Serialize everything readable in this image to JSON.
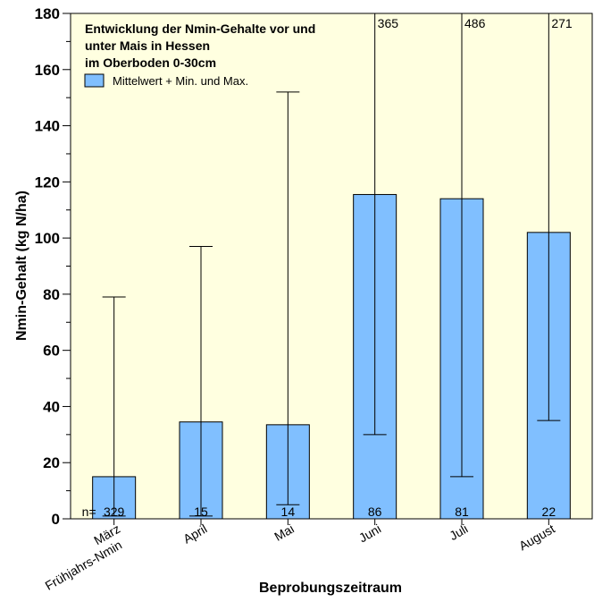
{
  "chart_data": {
    "type": "bar",
    "title_lines": [
      "Entwicklung der Nmin-Gehalte vor und",
      "unter Mais in Hessen",
      "im Oberboden 0-30cm"
    ],
    "legend": "Mittelwert + Min. und Max.",
    "xlabel": "Beprobungszeitraum",
    "ylabel": "Nmin-Gehalt (kg N/ha)",
    "ylim": [
      0,
      180
    ],
    "yticks": [
      "0",
      "20",
      "40",
      "60",
      "80",
      "100",
      "120",
      "140",
      "160",
      "180"
    ],
    "categories": [
      {
        "label": "März",
        "sublabel": "Frühjahrs-Nmin"
      },
      {
        "label": "April"
      },
      {
        "label": "Mai"
      },
      {
        "label": "Juni"
      },
      {
        "label": "Juli"
      },
      {
        "label": "August"
      }
    ],
    "values": [
      15,
      34.5,
      33.5,
      115.5,
      114,
      102
    ],
    "min": [
      1,
      1,
      5,
      30,
      15,
      35
    ],
    "max": [
      79,
      97,
      152,
      365,
      486,
      271
    ],
    "max_labels": [
      "",
      "",
      "",
      "365",
      "486",
      "271"
    ],
    "n_prefix": "n=",
    "n": [
      "329",
      "15",
      "14",
      "86",
      "81",
      "22"
    ],
    "colors": {
      "bar": "#80BFFF",
      "plot_bg": "#FFFFE0",
      "axis": "#000000"
    },
    "grid": false,
    "legend_position": "top-left"
  }
}
